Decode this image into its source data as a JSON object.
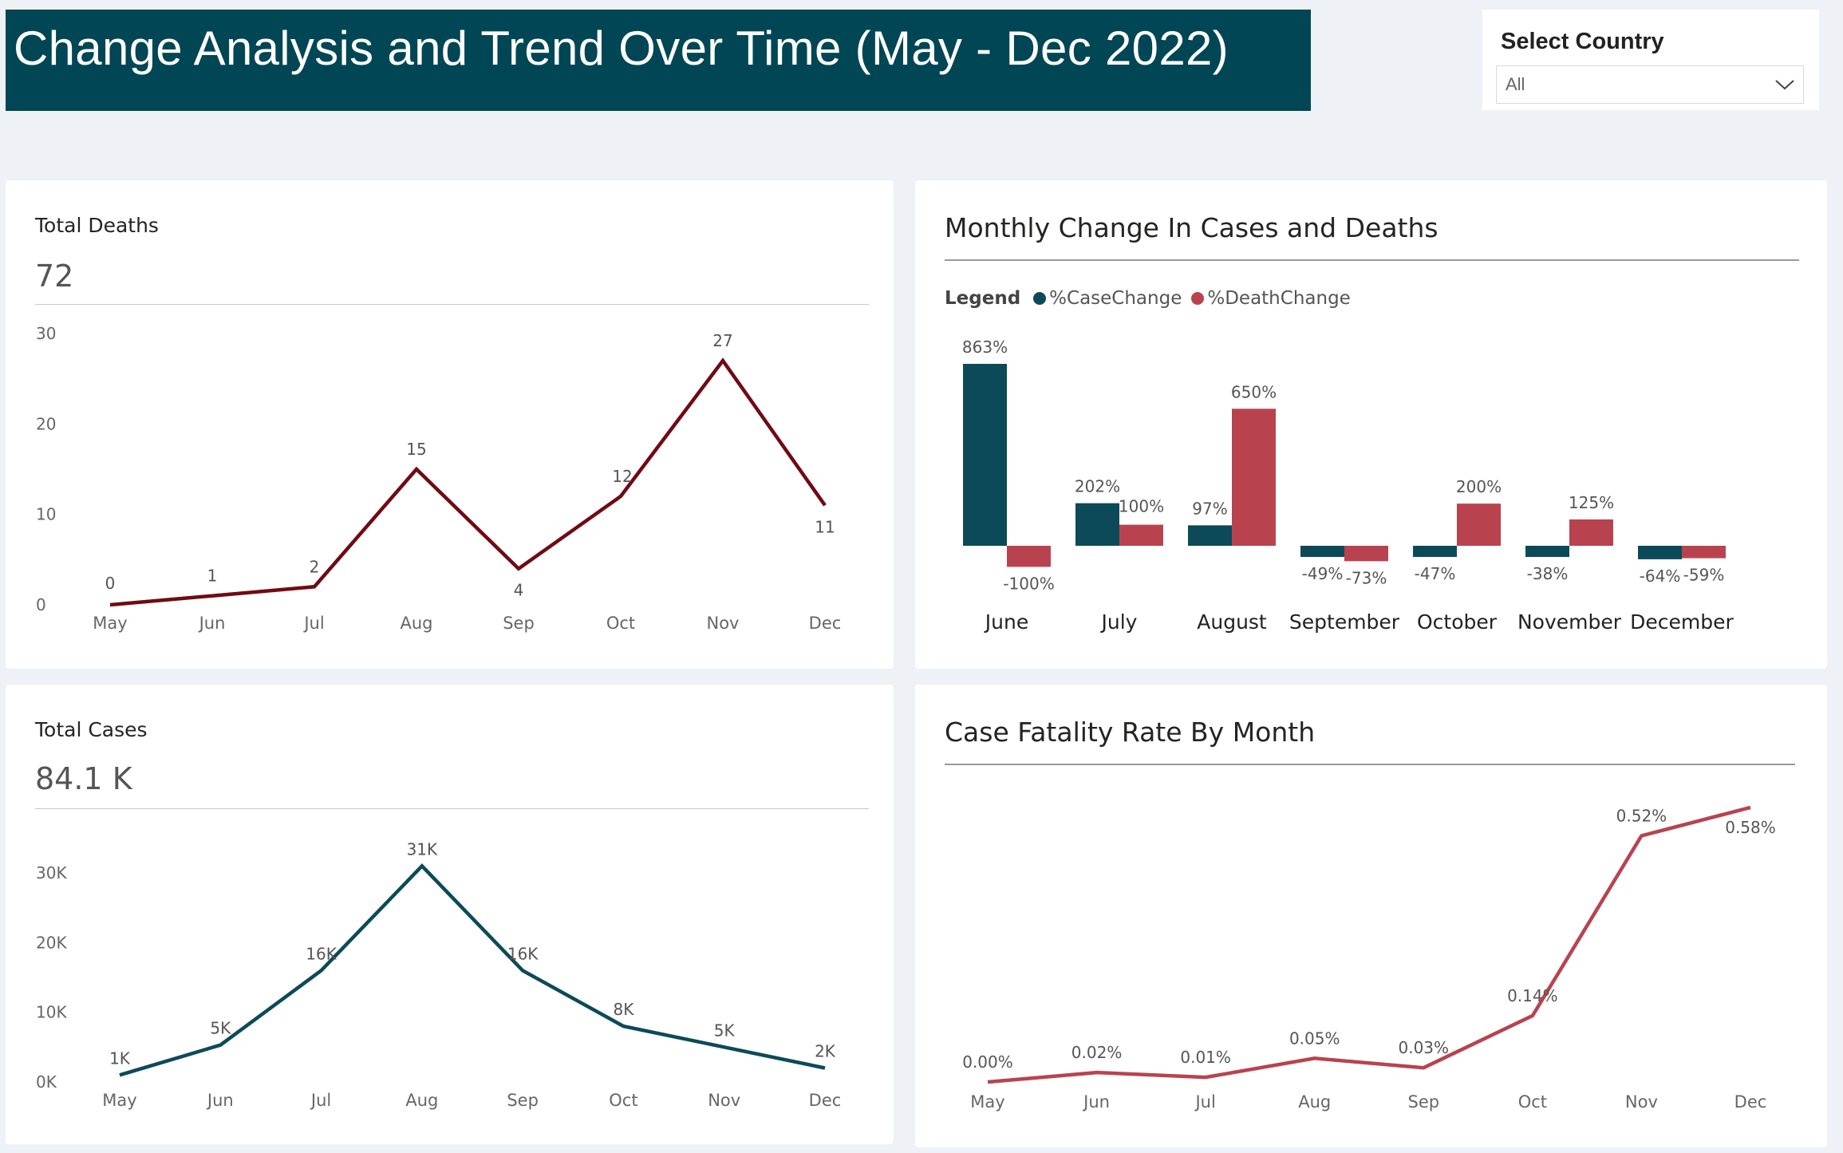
{
  "page_title": "Change Analysis and Trend Over Time (May - Dec 2022)",
  "slicer": {
    "label": "Select Country",
    "value": "All"
  },
  "colors": {
    "title_bg": "#004655",
    "deaths_line": "#700a14",
    "cases_line": "#0d4a59",
    "case_change": "#0d4a59",
    "death_change": "#b8434f",
    "cfr_line": "#b8434f"
  },
  "cards": {
    "deaths": {
      "title": "Total Deaths",
      "kpi": "72"
    },
    "cases": {
      "title": "Total Cases",
      "kpi": "84.1 K"
    },
    "monthly_change": {
      "title": "Monthly Change In Cases and Deaths",
      "legend_title": "Legend"
    },
    "cfr": {
      "title": "Case Fatality Rate By Month"
    }
  },
  "chart_data": [
    {
      "id": "deaths",
      "type": "line",
      "categories": [
        "May",
        "Jun",
        "Jul",
        "Aug",
        "Sep",
        "Oct",
        "Nov",
        "Dec"
      ],
      "series": [
        {
          "values": [
            0,
            1,
            2,
            15,
            4,
            12,
            27,
            11
          ]
        }
      ],
      "data_labels": [
        "0",
        "1",
        "2",
        "15",
        "4",
        "12",
        "27",
        "11"
      ],
      "ylim": [
        0,
        30
      ],
      "yticks": [
        0,
        10,
        20,
        30
      ],
      "ytick_labels": [
        "0",
        "10",
        "20",
        "30"
      ],
      "grid": false
    },
    {
      "id": "cases",
      "type": "line",
      "categories": [
        "May",
        "Jun",
        "Jul",
        "Aug",
        "Sep",
        "Oct",
        "Nov",
        "Dec"
      ],
      "series": [
        {
          "values": [
            1000,
            5300,
            16000,
            31000,
            16000,
            8000,
            5000,
            2000
          ]
        }
      ],
      "data_labels": [
        "1K",
        "5K",
        "16K",
        "31K",
        "16K",
        "8K",
        "5K",
        "2K"
      ],
      "ylim": [
        0,
        30000
      ],
      "yticks": [
        0,
        10000,
        20000,
        30000
      ],
      "ytick_labels": [
        "0K",
        "10K",
        "20K",
        "30K"
      ],
      "grid": false
    },
    {
      "id": "monthly_change",
      "type": "bar",
      "categories": [
        "June",
        "July",
        "August",
        "September",
        "October",
        "November",
        "December"
      ],
      "series": [
        {
          "name": "%CaseChange",
          "values": [
            863,
            202,
            97,
            -49,
            -47,
            -38,
            -64
          ],
          "labels": [
            "863%",
            "202%",
            "97%",
            "-49%",
            "-47%",
            "-38%",
            "-64%"
          ]
        },
        {
          "name": "%DeathChange",
          "values": [
            -100,
            100,
            650,
            -73,
            200,
            125,
            -59
          ],
          "labels": [
            "-100%",
            "100%",
            "650%",
            "-73%",
            "200%",
            "125%",
            "-59%"
          ]
        }
      ],
      "legend_position": "top-left",
      "grid": false
    },
    {
      "id": "cfr",
      "type": "line",
      "categories": [
        "May",
        "Jun",
        "Jul",
        "Aug",
        "Sep",
        "Oct",
        "Nov",
        "Dec"
      ],
      "series": [
        {
          "values": [
            0.0,
            0.02,
            0.01,
            0.05,
            0.03,
            0.14,
            0.52,
            0.58
          ]
        }
      ],
      "data_labels": [
        "0.00%",
        "0.02%",
        "0.01%",
        "0.05%",
        "0.03%",
        "0.14%",
        "0.52%",
        "0.58%"
      ],
      "ylim": [
        0,
        0.6
      ],
      "grid": false
    }
  ]
}
